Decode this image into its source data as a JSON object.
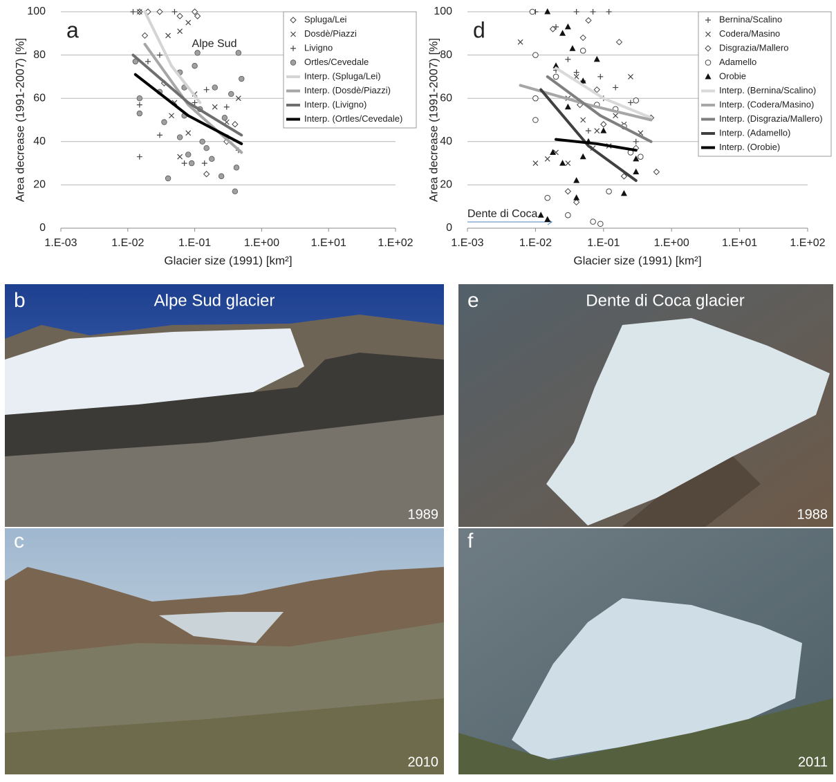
{
  "chart_data": [
    {
      "type": "scatter",
      "panel_label": "a",
      "xlabel": "Glacier size (1991) [km²]",
      "ylabel": "Area decrease (1991-2007) [%]",
      "xscale": "log",
      "xlim": [
        0.001,
        100
      ],
      "xticks": [
        {
          "value": 0.001,
          "label": "1.E-03"
        },
        {
          "value": 0.01,
          "label": "1.E-02"
        },
        {
          "value": 0.1,
          "label": "1.E-01"
        },
        {
          "value": 1,
          "label": "1.E+00"
        },
        {
          "value": 10,
          "label": "1.E+01"
        },
        {
          "value": 100,
          "label": "1.E+02"
        }
      ],
      "ylim": [
        0,
        100
      ],
      "yticks": [
        0,
        20,
        40,
        60,
        80,
        100
      ],
      "grid": true,
      "legend": "upper right",
      "annotations": [
        "Alpe Sud"
      ],
      "series": [
        {
          "name": "Spluga/Lei",
          "color": "#444444",
          "marker": "diamond",
          "x": [
            0.015,
            0.03,
            0.06,
            0.1,
            0.11,
            0.018,
            0.02,
            0.035,
            0.15,
            0.4,
            0.3
          ],
          "values": [
            100,
            100,
            98,
            100,
            98,
            89,
            100,
            67,
            25,
            48,
            40
          ]
        },
        {
          "name": "Dosdè/Piazzi",
          "color": "#444444",
          "marker": "x",
          "x": [
            0.04,
            0.06,
            0.08,
            0.015,
            0.05,
            0.1,
            0.2,
            0.08,
            0.06,
            0.45,
            0.045,
            0.3
          ],
          "values": [
            89,
            91,
            95,
            100,
            58,
            62,
            56,
            44,
            33,
            60,
            52,
            49
          ]
        },
        {
          "name": "Livigno",
          "color": "#444444",
          "marker": "plus",
          "x": [
            0.012,
            0.05,
            0.02,
            0.03,
            0.015,
            0.015,
            0.03,
            0.15,
            0.3,
            0.1,
            0.45,
            0.07,
            0.14
          ],
          "values": [
            100,
            100,
            77,
            80,
            33,
            57,
            43,
            64,
            56,
            58,
            36,
            30,
            30
          ]
        },
        {
          "name": "Ortles/Cevedale",
          "color": "#a0a0a0",
          "marker": "circle-filled",
          "x": [
            0.013,
            0.015,
            0.015,
            0.03,
            0.035,
            0.04,
            0.06,
            0.07,
            0.06,
            0.08,
            0.09,
            0.1,
            0.11,
            0.12,
            0.13,
            0.15,
            0.2,
            0.25,
            0.28,
            0.3,
            0.35,
            0.4,
            0.45,
            0.5,
            0.42,
            0.18,
            0.07
          ],
          "values": [
            77,
            60,
            53,
            63,
            49,
            23,
            72,
            65,
            42,
            34,
            30,
            75,
            81,
            55,
            40,
            37,
            65,
            24,
            51,
            42,
            62,
            17,
            81,
            69,
            28,
            32,
            52
          ]
        },
        {
          "name": "Interp. (Spluga/Lei)",
          "color": "#d4d4d4",
          "marker": "line",
          "x": [
            0.018,
            0.045,
            0.12
          ],
          "values": [
            100,
            75,
            58
          ]
        },
        {
          "name": "Interp. (Dosdè/Piazzi)",
          "color": "#a6a6a6",
          "marker": "line",
          "x": [
            0.018,
            0.08,
            0.5
          ],
          "values": [
            85,
            57,
            35
          ]
        },
        {
          "name": "Interp. (Livigno)",
          "color": "#6e6e6e",
          "marker": "line",
          "x": [
            0.012,
            0.08,
            0.5
          ],
          "values": [
            80,
            58,
            43
          ]
        },
        {
          "name": "Interp. (Ortles/Cevedale)",
          "color": "#000000",
          "marker": "line",
          "x": [
            0.013,
            0.08,
            0.5
          ],
          "values": [
            71,
            52,
            39
          ]
        }
      ]
    },
    {
      "type": "scatter",
      "panel_label": "d",
      "xlabel": "Glacier size (1991) [km²]",
      "ylabel": "Area decrease (1991-2007) [%]",
      "xscale": "log",
      "xlim": [
        0.001,
        100
      ],
      "xticks": [
        {
          "value": 0.001,
          "label": "1.E-03"
        },
        {
          "value": 0.01,
          "label": "1.E-02"
        },
        {
          "value": 0.1,
          "label": "1.E-01"
        },
        {
          "value": 1,
          "label": "1.E+00"
        },
        {
          "value": 10,
          "label": "1.E+01"
        },
        {
          "value": 100,
          "label": "1.E+02"
        }
      ],
      "ylim": [
        0,
        100
      ],
      "yticks": [
        0,
        20,
        40,
        60,
        80,
        100
      ],
      "grid": true,
      "legend": "upper right",
      "annotations": [
        "Dente di Coca"
      ],
      "series": [
        {
          "name": "Bernina/Scalino",
          "color": "#444444",
          "marker": "plus",
          "x": [
            0.01,
            0.04,
            0.07,
            0.12,
            0.02,
            0.03,
            0.04,
            0.05,
            0.09,
            0.15,
            0.1,
            0.25,
            0.06,
            0.02,
            0.3
          ],
          "values": [
            100,
            100,
            100,
            100,
            93,
            78,
            72,
            68,
            70,
            65,
            60,
            58,
            45,
            73,
            40
          ]
        },
        {
          "name": "Codera/Masino",
          "color": "#444444",
          "marker": "x",
          "x": [
            0.006,
            0.01,
            0.015,
            0.02,
            0.03,
            0.04,
            0.05,
            0.08,
            0.12,
            0.15,
            0.25,
            0.35,
            0.2,
            0.03,
            0.07
          ],
          "values": [
            86,
            30,
            32,
            35,
            30,
            70,
            50,
            45,
            38,
            52,
            70,
            44,
            48,
            60,
            37
          ]
        },
        {
          "name": "Disgrazia/Mallero",
          "color": "#444444",
          "marker": "diamond",
          "x": [
            0.018,
            0.05,
            0.06,
            0.17,
            0.045,
            0.08,
            0.1,
            0.2,
            0.6,
            0.5,
            0.03,
            0.04,
            0.3
          ],
          "values": [
            92,
            88,
            96,
            86,
            57,
            64,
            48,
            24,
            26,
            51,
            17,
            12,
            37
          ]
        },
        {
          "name": "Adamello",
          "color": "#444444",
          "marker": "circle-open",
          "x": [
            0.009,
            0.01,
            0.01,
            0.01,
            0.015,
            0.02,
            0.03,
            0.05,
            0.07,
            0.09,
            0.12,
            0.15,
            0.2,
            0.3,
            0.35,
            0.25,
            0.08
          ],
          "values": [
            100,
            60,
            50,
            80,
            14,
            70,
            6,
            82,
            3,
            2,
            17,
            55,
            47,
            59,
            33,
            35,
            57
          ]
        },
        {
          "name": "Orobie",
          "color": "#111111",
          "marker": "triangle",
          "x": [
            0.015,
            0.012,
            0.015,
            0.025,
            0.03,
            0.035,
            0.02,
            0.03,
            0.025,
            0.04,
            0.04,
            0.05,
            0.08,
            0.06,
            0.1,
            0.2,
            0.3,
            0.3,
            0.018,
            0.05
          ],
          "values": [
            100,
            6,
            4,
            90,
            93,
            83,
            75,
            56,
            30,
            22,
            14,
            68,
            78,
            40,
            45,
            16,
            32,
            26,
            35,
            33
          ]
        },
        {
          "name": "Interp. (Bernina/Scalino)",
          "color": "#d9d9d9",
          "marker": "line",
          "x": [
            0.02,
            0.1,
            0.5
          ],
          "values": [
            74,
            60,
            51
          ]
        },
        {
          "name": "Interp. (Codera/Masino)",
          "color": "#a6a6a6",
          "marker": "line",
          "x": [
            0.006,
            0.06,
            0.5
          ],
          "values": [
            66,
            57,
            50
          ]
        },
        {
          "name": "Interp. (Disgrazia/Mallero)",
          "color": "#7f7f7f",
          "marker": "line",
          "x": [
            0.015,
            0.09,
            0.5
          ],
          "values": [
            70,
            52,
            40
          ]
        },
        {
          "name": "Interp. (Adamello)",
          "color": "#404040",
          "marker": "line",
          "x": [
            0.012,
            0.06,
            0.3
          ],
          "values": [
            64,
            38,
            22
          ]
        },
        {
          "name": "Interp. (Orobie)",
          "color": "#000000",
          "marker": "line",
          "x": [
            0.02,
            0.08,
            0.3
          ],
          "values": [
            41,
            39,
            36
          ]
        }
      ]
    }
  ],
  "photos": [
    {
      "label": "b",
      "title": "Alpe Sud glacier",
      "year": "1989"
    },
    {
      "label": "c",
      "year": "2010"
    },
    {
      "label": "e",
      "title": "Dente di Coca glacier",
      "year": "1988"
    },
    {
      "label": "f",
      "year": "2011"
    }
  ]
}
